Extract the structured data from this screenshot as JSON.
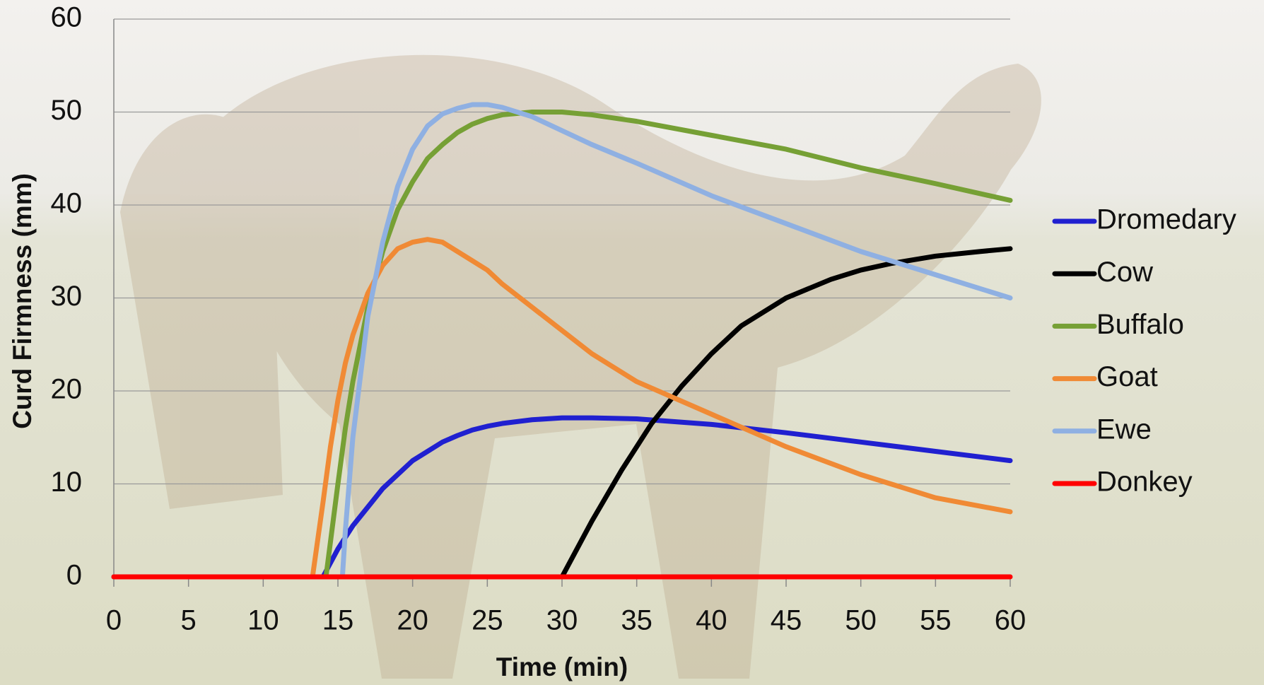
{
  "chart_data": {
    "type": "line",
    "x_label": "Time (min)",
    "y_label": "Curd Firmness (mm)",
    "xlim": [
      0,
      60
    ],
    "ylim": [
      0,
      60
    ],
    "xticks": [
      0,
      5,
      10,
      15,
      20,
      25,
      30,
      35,
      40,
      45,
      50,
      55,
      60
    ],
    "yticks": [
      0,
      10,
      20,
      30,
      40,
      50,
      60
    ],
    "grid": true,
    "legend": "right",
    "series": [
      {
        "name": "Dromedary",
        "color": "#2020d0",
        "x": [
          0,
          14,
          15,
          16,
          17,
          18,
          19,
          20,
          21,
          22,
          23,
          24,
          25,
          26,
          28,
          30,
          32,
          35,
          40,
          45,
          50,
          55,
          60
        ],
        "values": [
          0,
          0,
          3,
          5.5,
          7.5,
          9.5,
          11,
          12.5,
          13.5,
          14.5,
          15.2,
          15.8,
          16.2,
          16.5,
          16.9,
          17.1,
          17.1,
          17,
          16.4,
          15.5,
          14.5,
          13.5,
          12.5
        ]
      },
      {
        "name": "Cow",
        "color": "#000000",
        "x": [
          0,
          30,
          31,
          32,
          34,
          36,
          38,
          40,
          42,
          45,
          48,
          50,
          52,
          55,
          58,
          60
        ],
        "values": [
          0,
          0,
          3,
          6,
          11.5,
          16.5,
          20.5,
          24,
          27,
          30,
          32,
          33,
          33.7,
          34.5,
          35,
          35.3
        ]
      },
      {
        "name": "Buffalo",
        "color": "#76a035",
        "x": [
          0,
          14.2,
          15,
          15.5,
          16,
          17,
          18,
          19,
          20,
          21,
          22,
          23,
          24,
          25,
          26,
          28,
          30,
          32,
          35,
          40,
          45,
          50,
          55,
          60
        ],
        "values": [
          0,
          0,
          10,
          16,
          21,
          29,
          35,
          39.5,
          42.5,
          45,
          46.5,
          47.8,
          48.7,
          49.3,
          49.7,
          50,
          50,
          49.7,
          49,
          47.5,
          46,
          44,
          42.3,
          40.5
        ]
      },
      {
        "name": "Goat",
        "color": "#f08a35",
        "x": [
          0,
          13.3,
          14,
          14.5,
          15,
          15.5,
          16,
          17,
          18,
          19,
          20,
          21,
          22,
          23,
          24,
          25,
          26,
          28,
          30,
          32,
          35,
          40,
          45,
          50,
          55,
          60
        ],
        "values": [
          0,
          0,
          8,
          14,
          19,
          23,
          26,
          30.5,
          33.5,
          35.3,
          36,
          36.3,
          36,
          35,
          34,
          33,
          31.5,
          29,
          26.5,
          24,
          21,
          17.5,
          14,
          11,
          8.5,
          7
        ]
      },
      {
        "name": "Ewe",
        "color": "#8fb0e2",
        "x": [
          0,
          15.3,
          15.5,
          16,
          17,
          18,
          19,
          20,
          21,
          22,
          23,
          24,
          25,
          26,
          28,
          30,
          32,
          35,
          40,
          45,
          50,
          55,
          60
        ],
        "values": [
          0,
          0,
          5,
          15,
          28,
          36,
          42,
          46,
          48.5,
          49.8,
          50.4,
          50.8,
          50.8,
          50.5,
          49.5,
          48,
          46.5,
          44.5,
          41,
          38,
          35,
          32.5,
          30
        ]
      },
      {
        "name": "Donkey",
        "color": "#ff0000",
        "x": [
          0,
          60
        ],
        "values": [
          0,
          0
        ]
      }
    ]
  }
}
